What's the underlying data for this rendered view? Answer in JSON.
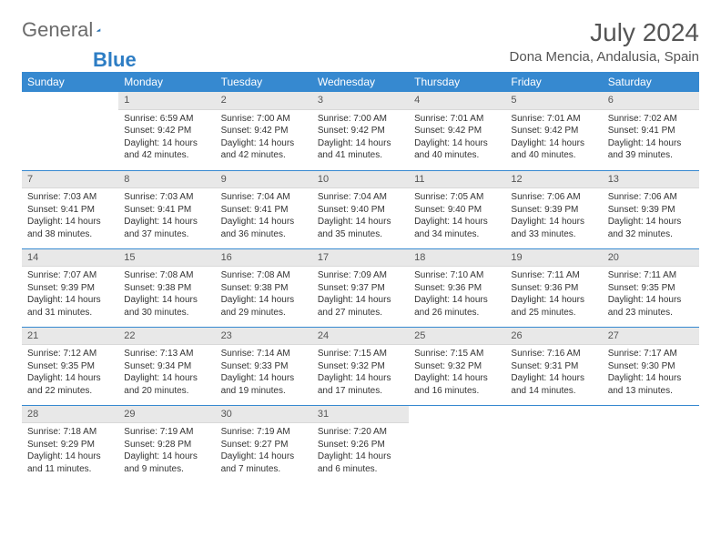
{
  "brand": {
    "part1": "General",
    "part2": "Blue"
  },
  "title": "July 2024",
  "location": "Dona Mencia, Andalusia, Spain",
  "weekdays": [
    "Sunday",
    "Monday",
    "Tuesday",
    "Wednesday",
    "Thursday",
    "Friday",
    "Saturday"
  ],
  "colors": {
    "header_bg": "#3689d0",
    "daynum_bg": "#e8e8e8",
    "row_border": "#3689d0",
    "logo_blue": "#2d7dc4"
  },
  "first_weekday_index": 1,
  "days": [
    {
      "n": 1,
      "sunrise": "6:59 AM",
      "sunset": "9:42 PM",
      "daylight": "14 hours and 42 minutes."
    },
    {
      "n": 2,
      "sunrise": "7:00 AM",
      "sunset": "9:42 PM",
      "daylight": "14 hours and 42 minutes."
    },
    {
      "n": 3,
      "sunrise": "7:00 AM",
      "sunset": "9:42 PM",
      "daylight": "14 hours and 41 minutes."
    },
    {
      "n": 4,
      "sunrise": "7:01 AM",
      "sunset": "9:42 PM",
      "daylight": "14 hours and 40 minutes."
    },
    {
      "n": 5,
      "sunrise": "7:01 AM",
      "sunset": "9:42 PM",
      "daylight": "14 hours and 40 minutes."
    },
    {
      "n": 6,
      "sunrise": "7:02 AM",
      "sunset": "9:41 PM",
      "daylight": "14 hours and 39 minutes."
    },
    {
      "n": 7,
      "sunrise": "7:03 AM",
      "sunset": "9:41 PM",
      "daylight": "14 hours and 38 minutes."
    },
    {
      "n": 8,
      "sunrise": "7:03 AM",
      "sunset": "9:41 PM",
      "daylight": "14 hours and 37 minutes."
    },
    {
      "n": 9,
      "sunrise": "7:04 AM",
      "sunset": "9:41 PM",
      "daylight": "14 hours and 36 minutes."
    },
    {
      "n": 10,
      "sunrise": "7:04 AM",
      "sunset": "9:40 PM",
      "daylight": "14 hours and 35 minutes."
    },
    {
      "n": 11,
      "sunrise": "7:05 AM",
      "sunset": "9:40 PM",
      "daylight": "14 hours and 34 minutes."
    },
    {
      "n": 12,
      "sunrise": "7:06 AM",
      "sunset": "9:39 PM",
      "daylight": "14 hours and 33 minutes."
    },
    {
      "n": 13,
      "sunrise": "7:06 AM",
      "sunset": "9:39 PM",
      "daylight": "14 hours and 32 minutes."
    },
    {
      "n": 14,
      "sunrise": "7:07 AM",
      "sunset": "9:39 PM",
      "daylight": "14 hours and 31 minutes."
    },
    {
      "n": 15,
      "sunrise": "7:08 AM",
      "sunset": "9:38 PM",
      "daylight": "14 hours and 30 minutes."
    },
    {
      "n": 16,
      "sunrise": "7:08 AM",
      "sunset": "9:38 PM",
      "daylight": "14 hours and 29 minutes."
    },
    {
      "n": 17,
      "sunrise": "7:09 AM",
      "sunset": "9:37 PM",
      "daylight": "14 hours and 27 minutes."
    },
    {
      "n": 18,
      "sunrise": "7:10 AM",
      "sunset": "9:36 PM",
      "daylight": "14 hours and 26 minutes."
    },
    {
      "n": 19,
      "sunrise": "7:11 AM",
      "sunset": "9:36 PM",
      "daylight": "14 hours and 25 minutes."
    },
    {
      "n": 20,
      "sunrise": "7:11 AM",
      "sunset": "9:35 PM",
      "daylight": "14 hours and 23 minutes."
    },
    {
      "n": 21,
      "sunrise": "7:12 AM",
      "sunset": "9:35 PM",
      "daylight": "14 hours and 22 minutes."
    },
    {
      "n": 22,
      "sunrise": "7:13 AM",
      "sunset": "9:34 PM",
      "daylight": "14 hours and 20 minutes."
    },
    {
      "n": 23,
      "sunrise": "7:14 AM",
      "sunset": "9:33 PM",
      "daylight": "14 hours and 19 minutes."
    },
    {
      "n": 24,
      "sunrise": "7:15 AM",
      "sunset": "9:32 PM",
      "daylight": "14 hours and 17 minutes."
    },
    {
      "n": 25,
      "sunrise": "7:15 AM",
      "sunset": "9:32 PM",
      "daylight": "14 hours and 16 minutes."
    },
    {
      "n": 26,
      "sunrise": "7:16 AM",
      "sunset": "9:31 PM",
      "daylight": "14 hours and 14 minutes."
    },
    {
      "n": 27,
      "sunrise": "7:17 AM",
      "sunset": "9:30 PM",
      "daylight": "14 hours and 13 minutes."
    },
    {
      "n": 28,
      "sunrise": "7:18 AM",
      "sunset": "9:29 PM",
      "daylight": "14 hours and 11 minutes."
    },
    {
      "n": 29,
      "sunrise": "7:19 AM",
      "sunset": "9:28 PM",
      "daylight": "14 hours and 9 minutes."
    },
    {
      "n": 30,
      "sunrise": "7:19 AM",
      "sunset": "9:27 PM",
      "daylight": "14 hours and 7 minutes."
    },
    {
      "n": 31,
      "sunrise": "7:20 AM",
      "sunset": "9:26 PM",
      "daylight": "14 hours and 6 minutes."
    }
  ],
  "labels": {
    "sunrise": "Sunrise:",
    "sunset": "Sunset:",
    "daylight": "Daylight:"
  }
}
